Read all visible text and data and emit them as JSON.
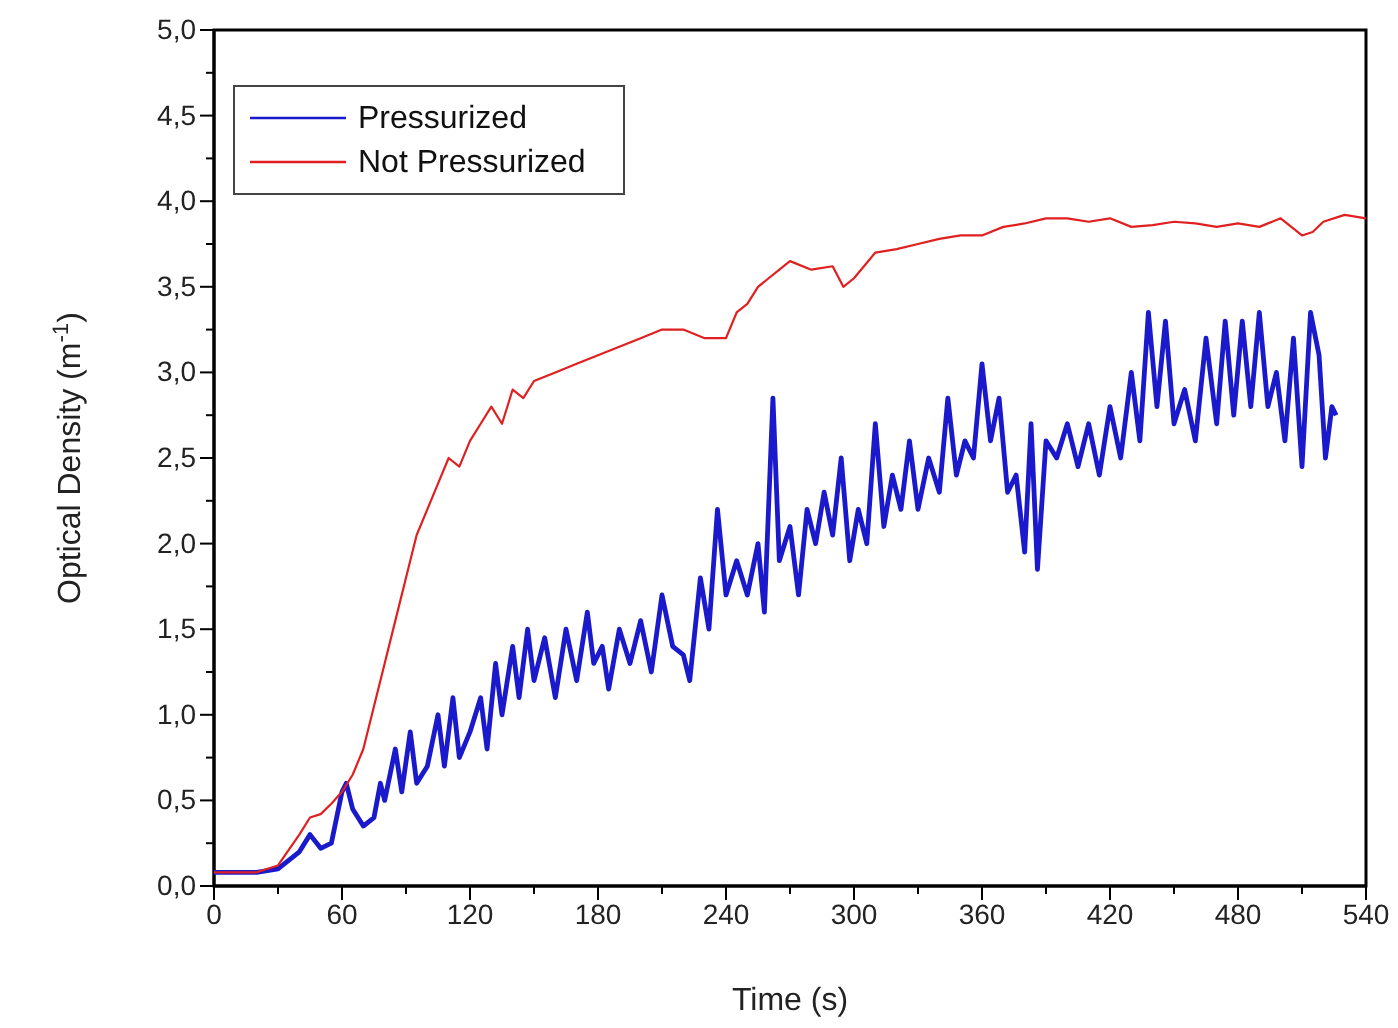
{
  "chart_data": {
    "type": "line",
    "xlabel": "Time (s)",
    "ylabel": "Optical Density (m$^{-1}$)",
    "xlim": [
      0,
      540
    ],
    "ylim": [
      0,
      5
    ],
    "xticks": [
      0,
      {
        "value": 30,
        "label": null
      },
      60,
      {
        "value": 90,
        "label": null
      },
      120,
      {
        "value": 150,
        "label": null
      },
      180,
      {
        "value": 210,
        "label": null
      },
      240,
      {
        "value": 270,
        "label": null
      },
      300,
      {
        "value": 330,
        "label": null
      },
      360,
      {
        "value": 390,
        "label": null
      },
      420,
      {
        "value": 450,
        "label": null
      },
      480,
      {
        "value": 510,
        "label": null
      },
      540
    ],
    "yticks": [
      {
        "value": 0,
        "label": "0,0"
      },
      {
        "value": 0.25,
        "label": null
      },
      {
        "value": 0.5,
        "label": "0,5"
      },
      {
        "value": 0.75,
        "label": null
      },
      {
        "value": 1,
        "label": "1,0"
      },
      {
        "value": 1.25,
        "label": null
      },
      {
        "value": 1.5,
        "label": "1,5"
      },
      {
        "value": 1.75,
        "label": null
      },
      {
        "value": 2,
        "label": "2,0"
      },
      {
        "value": 2.25,
        "label": null
      },
      {
        "value": 2.5,
        "label": "2,5"
      },
      {
        "value": 2.75,
        "label": null
      },
      {
        "value": 3,
        "label": "3,0"
      },
      {
        "value": 3.25,
        "label": null
      },
      {
        "value": 3.5,
        "label": "3,5"
      },
      {
        "value": 3.75,
        "label": null
      },
      {
        "value": 4,
        "label": "4,0"
      },
      {
        "value": 4.25,
        "label": null
      },
      {
        "value": 4.5,
        "label": "4,5"
      },
      {
        "value": 4.75,
        "label": null
      },
      {
        "value": 5,
        "label": "5,0"
      }
    ],
    "legend": "top left",
    "grid": false,
    "line_style": "solid",
    "marker": "none",
    "series": [
      {
        "name": "Pressurized",
        "color": "#1a1acc",
        "x": [
          0,
          20,
          30,
          40,
          45,
          50,
          55,
          60,
          62,
          65,
          70,
          75,
          78,
          80,
          85,
          88,
          92,
          95,
          100,
          105,
          108,
          112,
          115,
          120,
          125,
          128,
          132,
          135,
          140,
          143,
          147,
          150,
          155,
          160,
          165,
          170,
          175,
          178,
          182,
          185,
          190,
          195,
          200,
          205,
          210,
          215,
          220,
          223,
          228,
          232,
          236,
          240,
          245,
          250,
          255,
          258,
          262,
          265,
          270,
          274,
          278,
          282,
          286,
          290,
          294,
          298,
          302,
          306,
          310,
          314,
          318,
          322,
          326,
          330,
          335,
          340,
          344,
          348,
          352,
          356,
          360,
          364,
          368,
          372,
          376,
          380,
          383,
          386,
          390,
          395,
          400,
          405,
          410,
          415,
          420,
          425,
          430,
          434,
          438,
          442,
          446,
          450,
          455,
          460,
          465,
          470,
          474,
          478,
          482,
          486,
          490,
          494,
          498,
          502,
          506,
          510,
          514,
          518,
          521,
          524,
          526
        ],
        "values": [
          0.08,
          0.08,
          0.1,
          0.2,
          0.3,
          0.22,
          0.25,
          0.55,
          0.6,
          0.45,
          0.35,
          0.4,
          0.6,
          0.5,
          0.8,
          0.55,
          0.9,
          0.6,
          0.7,
          1.0,
          0.7,
          1.1,
          0.75,
          0.9,
          1.1,
          0.8,
          1.3,
          1.0,
          1.4,
          1.1,
          1.5,
          1.2,
          1.45,
          1.1,
          1.5,
          1.2,
          1.6,
          1.3,
          1.4,
          1.15,
          1.5,
          1.3,
          1.55,
          1.25,
          1.7,
          1.4,
          1.35,
          1.2,
          1.8,
          1.5,
          2.2,
          1.7,
          1.9,
          1.7,
          2.0,
          1.6,
          2.85,
          1.9,
          2.1,
          1.7,
          2.2,
          2.0,
          2.3,
          2.05,
          2.5,
          1.9,
          2.2,
          2.0,
          2.7,
          2.1,
          2.4,
          2.2,
          2.6,
          2.2,
          2.5,
          2.3,
          2.85,
          2.4,
          2.6,
          2.5,
          3.05,
          2.6,
          2.85,
          2.3,
          2.4,
          1.95,
          2.7,
          1.85,
          2.6,
          2.5,
          2.7,
          2.45,
          2.7,
          2.4,
          2.8,
          2.5,
          3.0,
          2.6,
          3.35,
          2.8,
          3.3,
          2.7,
          2.9,
          2.6,
          3.2,
          2.7,
          3.3,
          2.75,
          3.3,
          2.8,
          3.35,
          2.8,
          3.0,
          2.6,
          3.2,
          2.45,
          3.35,
          3.1,
          2.5,
          2.8,
          2.75
        ]
      },
      {
        "name": "Not Pressurized",
        "color": "#e02020",
        "x": [
          0,
          20,
          30,
          40,
          45,
          50,
          55,
          60,
          65,
          70,
          75,
          80,
          85,
          90,
          95,
          100,
          105,
          110,
          115,
          120,
          125,
          130,
          135,
          140,
          145,
          150,
          160,
          170,
          180,
          190,
          200,
          210,
          220,
          230,
          240,
          245,
          250,
          255,
          260,
          265,
          270,
          280,
          290,
          295,
          300,
          310,
          320,
          330,
          340,
          350,
          360,
          370,
          380,
          390,
          400,
          410,
          420,
          430,
          440,
          450,
          460,
          470,
          480,
          490,
          500,
          505,
          510,
          515,
          520,
          530,
          540
        ],
        "values": [
          0.08,
          0.08,
          0.12,
          0.3,
          0.4,
          0.42,
          0.48,
          0.55,
          0.65,
          0.8,
          1.05,
          1.3,
          1.55,
          1.8,
          2.05,
          2.2,
          2.35,
          2.5,
          2.45,
          2.6,
          2.7,
          2.8,
          2.7,
          2.9,
          2.85,
          2.95,
          3.0,
          3.05,
          3.1,
          3.15,
          3.2,
          3.25,
          3.25,
          3.2,
          3.2,
          3.35,
          3.4,
          3.5,
          3.55,
          3.6,
          3.65,
          3.6,
          3.62,
          3.5,
          3.55,
          3.7,
          3.72,
          3.75,
          3.78,
          3.8,
          3.8,
          3.85,
          3.87,
          3.9,
          3.9,
          3.88,
          3.9,
          3.85,
          3.86,
          3.88,
          3.87,
          3.85,
          3.87,
          3.85,
          3.9,
          3.85,
          3.8,
          3.82,
          3.88,
          3.92,
          3.9
        ]
      }
    ]
  }
}
